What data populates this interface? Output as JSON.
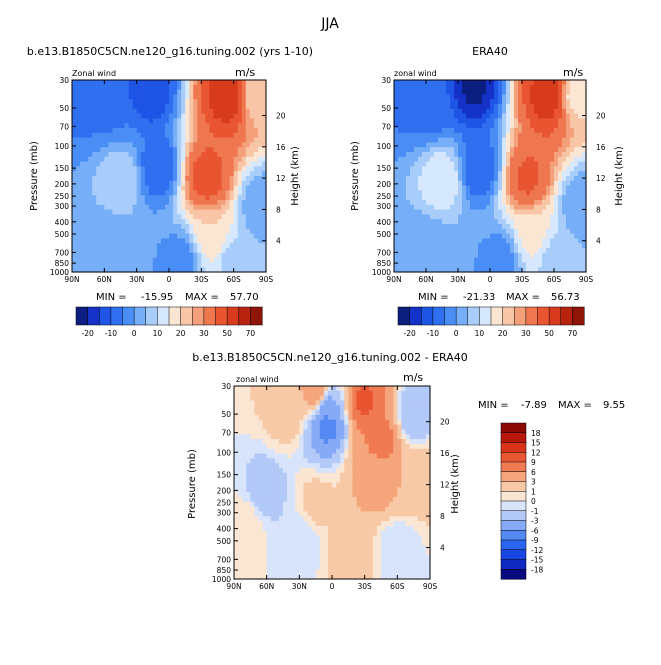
{
  "title": "JJA",
  "colors": {
    "full_field": [
      "#0b1f80",
      "#1432c8",
      "#1f55e6",
      "#2f6ff0",
      "#4a8ef5",
      "#77aef8",
      "#a9cdfb",
      "#d6e8fd",
      "#fbe6d3",
      "#f8c6a6",
      "#f4a07b",
      "#ef7750",
      "#e85530",
      "#d83a1c",
      "#b82310",
      "#8f1508"
    ],
    "difference": [
      "#0a0a80",
      "#0f2ac0",
      "#1846e0",
      "#2b64ee",
      "#5589f2",
      "#86aaf5",
      "#b3c9f8",
      "#d8e4fb",
      "#fbe6d3",
      "#f8c9a6",
      "#f5a57c",
      "#f07a52",
      "#e85530",
      "#d93418",
      "#b8170b",
      "#8c0a05"
    ]
  },
  "chart_data": [
    {
      "type": "heatmap",
      "title": "b.e13.B1850C5CN.ne120_g16.tuning.002 (yrs 1-10)",
      "left_label": "Zonal wind",
      "units": "m/s",
      "ylabel": "Pressure (mb)",
      "ylabel_right": "Height (km)",
      "x_ticks": [
        "90N",
        "60N",
        "30N",
        "0",
        "30S",
        "60S",
        "90S"
      ],
      "y_ticks": [
        "30",
        "50",
        "70",
        "100",
        "150",
        "200",
        "250",
        "300",
        "400",
        "500",
        "700",
        "850",
        "1000"
      ],
      "y_right_ticks": [
        "20",
        "16",
        "12",
        "8",
        "4"
      ],
      "y_log_scale": true,
      "stats": {
        "min_label": "MIN =",
        "min": "-15.95",
        "max_label": "MAX =",
        "max": "57.70"
      },
      "colorbar": {
        "labels": [
          "-20",
          "-10",
          "0",
          "10",
          "20",
          "30",
          "50",
          "70"
        ]
      },
      "features": [
        {
          "lat": 75,
          "p": 40,
          "v": -8
        },
        {
          "lat": 55,
          "p": 50,
          "v": -6
        },
        {
          "lat": 18,
          "p": 35,
          "v": -15
        },
        {
          "lat": 10,
          "p": 150,
          "v": -10
        },
        {
          "lat": 45,
          "p": 180,
          "v": 10
        },
        {
          "lat": 60,
          "p": 700,
          "v": 0
        },
        {
          "lat": -10,
          "p": 800,
          "v": -3
        },
        {
          "lat": -55,
          "p": 40,
          "v": 57
        },
        {
          "lat": -35,
          "p": 180,
          "v": 45
        },
        {
          "lat": -40,
          "p": 500,
          "v": 20
        },
        {
          "lat": -60,
          "p": 800,
          "v": 8
        },
        {
          "lat": -85,
          "p": 300,
          "v": 0
        },
        {
          "lat": -80,
          "p": 40,
          "v": 20
        }
      ]
    },
    {
      "type": "heatmap",
      "title": "ERA40",
      "left_label": "zonal wind",
      "units": "m/s",
      "ylabel": "Pressure (mb)",
      "ylabel_right": "Height (km)",
      "x_ticks": [
        "90N",
        "60N",
        "30N",
        "0",
        "30S",
        "60S",
        "90S"
      ],
      "y_ticks": [
        "30",
        "50",
        "70",
        "100",
        "150",
        "200",
        "250",
        "300",
        "400",
        "500",
        "700",
        "850",
        "1000"
      ],
      "y_right_ticks": [
        "20",
        "16",
        "12",
        "8",
        "4"
      ],
      "y_log_scale": true,
      "stats": {
        "min_label": "MIN =",
        "min": "-21.33",
        "max_label": "MAX =",
        "max": "56.73"
      },
      "colorbar": {
        "labels": [
          "-20",
          "-10",
          "0",
          "10",
          "20",
          "30",
          "50",
          "70"
        ]
      },
      "features": [
        {
          "lat": 75,
          "p": 40,
          "v": -6
        },
        {
          "lat": 55,
          "p": 50,
          "v": -8
        },
        {
          "lat": 15,
          "p": 35,
          "v": -21
        },
        {
          "lat": 10,
          "p": 150,
          "v": -10
        },
        {
          "lat": 45,
          "p": 180,
          "v": 15
        },
        {
          "lat": 60,
          "p": 700,
          "v": 0
        },
        {
          "lat": -10,
          "p": 800,
          "v": -3
        },
        {
          "lat": -55,
          "p": 40,
          "v": 56
        },
        {
          "lat": -35,
          "p": 180,
          "v": 42
        },
        {
          "lat": -40,
          "p": 500,
          "v": 18
        },
        {
          "lat": -60,
          "p": 800,
          "v": 8
        },
        {
          "lat": -85,
          "p": 300,
          "v": 0
        },
        {
          "lat": -80,
          "p": 40,
          "v": 18
        }
      ]
    },
    {
      "type": "heatmap",
      "title": "b.e13.B1850C5CN.ne120_g16.tuning.002 - ERA40",
      "left_label": "zonal wind",
      "units": "m/s",
      "ylabel": "Pressure (mb)",
      "ylabel_right": "Height (km)",
      "x_ticks": [
        "90N",
        "60N",
        "30N",
        "0",
        "30S",
        "60S",
        "90S"
      ],
      "y_ticks": [
        "30",
        "50",
        "70",
        "100",
        "150",
        "200",
        "250",
        "300",
        "400",
        "500",
        "700",
        "850",
        "1000"
      ],
      "y_right_ticks": [
        "20",
        "16",
        "12",
        "8",
        "4"
      ],
      "y_log_scale": true,
      "stats": {
        "min_label": "MIN =",
        "min": "-7.89",
        "max_label": "MAX =",
        "max": "9.55"
      },
      "colorbar": {
        "labels": [
          "18",
          "15",
          "12",
          "9",
          "6",
          "3",
          "1",
          "0",
          "-1",
          "-3",
          "-6",
          "-9",
          "-12",
          "-15",
          "-18"
        ]
      },
      "features": [
        {
          "lat": 5,
          "p": 60,
          "v": -7.5
        },
        {
          "lat": 5,
          "p": 45,
          "v": -4
        },
        {
          "lat": 15,
          "p": 35,
          "v": 5
        },
        {
          "lat": -30,
          "p": 40,
          "v": 9.5
        },
        {
          "lat": -45,
          "p": 80,
          "v": 7
        },
        {
          "lat": -40,
          "p": 150,
          "v": 5
        },
        {
          "lat": -75,
          "p": 50,
          "v": -3
        },
        {
          "lat": -80,
          "p": 150,
          "v": 2
        },
        {
          "lat": 40,
          "p": 50,
          "v": 2
        },
        {
          "lat": 60,
          "p": 200,
          "v": -2
        },
        {
          "lat": 80,
          "p": 400,
          "v": 1
        },
        {
          "lat": 30,
          "p": 500,
          "v": -1
        },
        {
          "lat": -20,
          "p": 700,
          "v": 2
        },
        {
          "lat": 15,
          "p": 250,
          "v": 1.5
        },
        {
          "lat": -60,
          "p": 600,
          "v": -1
        }
      ]
    }
  ]
}
